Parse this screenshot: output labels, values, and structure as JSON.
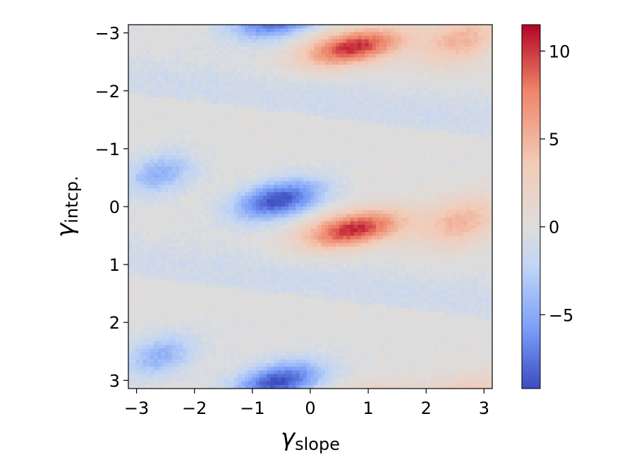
{
  "chart_data": {
    "type": "heatmap",
    "title": "",
    "xlabel": {
      "symbol": "γ",
      "subscript": "slope"
    },
    "ylabel": {
      "symbol": "γ",
      "subscript": "intcp."
    },
    "xlim": [
      -3.14159,
      3.14159
    ],
    "ylim": [
      3.14159,
      -3.14159
    ],
    "y_inverted": true,
    "x_ticks": [
      -3,
      -2,
      -1,
      0,
      1,
      2,
      3
    ],
    "x_tick_labels": [
      "−3",
      "−2",
      "−1",
      "0",
      "1",
      "2",
      "3"
    ],
    "y_ticks": [
      -3,
      -2,
      -1,
      0,
      1,
      2,
      3
    ],
    "y_tick_labels": [
      "−3",
      "−2",
      "−1",
      "0",
      "1",
      "2",
      "3"
    ],
    "colormap": "coolwarm",
    "colormap_stops": [
      "#3b4cc0",
      "#7b9ff9",
      "#c0d4f5",
      "#dddddd",
      "#f2cbb7",
      "#ee8468",
      "#b40426"
    ],
    "zlim": [
      -9.2,
      11.5
    ],
    "colorbar": {
      "ticks": [
        -5,
        0,
        5,
        10
      ],
      "tick_labels": [
        "−5",
        "0",
        "5",
        "10"
      ],
      "placement": "right"
    },
    "grid": false,
    "pattern_period_y": 3.14159,
    "features": [
      {
        "sign": "negative",
        "center_x": -0.5,
        "center_y": 0.0,
        "peak_value": -9.0
      },
      {
        "sign": "positive",
        "center_x": 0.6,
        "center_y": 0.35,
        "peak_value": 11.0
      },
      {
        "sign": "negative",
        "center_x": -0.5,
        "center_y": 2.8,
        "peak_value": -8.5
      },
      {
        "sign": "positive",
        "center_x": 0.6,
        "center_y": -2.8,
        "peak_value": 10.5
      }
    ]
  }
}
